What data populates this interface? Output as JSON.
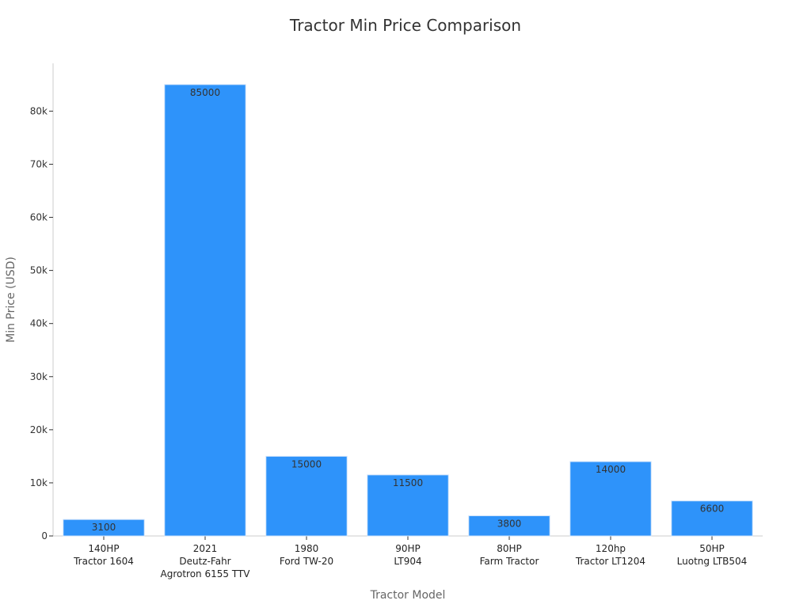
{
  "chart_data": {
    "type": "bar",
    "title": "Tractor Min Price Comparison",
    "xlabel": "Tractor Model",
    "ylabel": "Min Price (USD)",
    "ylim": [
      0,
      89000
    ],
    "yticks": [
      0,
      10000,
      20000,
      30000,
      40000,
      50000,
      60000,
      70000,
      80000
    ],
    "ytick_labels": [
      "0",
      "10k",
      "20k",
      "30k",
      "40k",
      "50k",
      "60k",
      "70k",
      "80k"
    ],
    "categories": [
      [
        "140HP",
        "Tractor 1604"
      ],
      [
        "2021",
        "Deutz-Fahr",
        "Agrotron 6155 TTV"
      ],
      [
        "1980",
        "Ford TW-20"
      ],
      [
        "90HP",
        "LT904"
      ],
      [
        "80HP",
        "Farm Tractor"
      ],
      [
        "120hp",
        "Tractor LT1204"
      ],
      [
        "50HP",
        "Luotng LTB504"
      ]
    ],
    "values": [
      3100,
      85000,
      15000,
      11500,
      3800,
      14000,
      6600
    ],
    "data_labels": [
      "3100",
      "85000",
      "15000",
      "11500",
      "3800",
      "14000",
      "6600"
    ],
    "bar_color": "#2e93fa",
    "grid": false
  }
}
